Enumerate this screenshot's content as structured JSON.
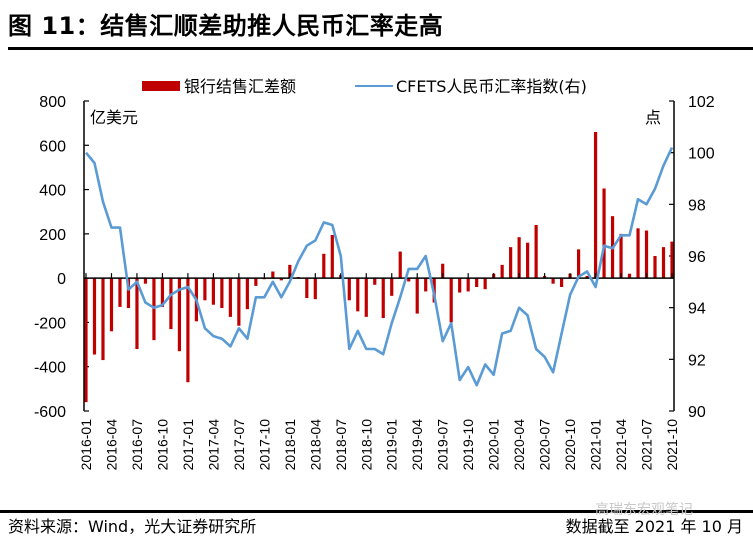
{
  "header": {
    "title": "图 11：结售汇顺差助推人民币汇率走高"
  },
  "footer": {
    "source": "资料来源：Wind，光大证券研究所",
    "cutoff": "数据截至 2021 年 10 月",
    "watermark": "高瑞东宏观笔记"
  },
  "chart_data": {
    "type": "bar+line",
    "title": "结售汇顺差助推人民币汇率走高",
    "legend": [
      {
        "name": "银行结售汇差额",
        "color": "#C00000",
        "kind": "bar"
      },
      {
        "name": "CFETS人民币汇率指数(右)",
        "color": "#5B9BD5",
        "kind": "line"
      }
    ],
    "legend_placement": "top",
    "left_axis": {
      "unit": "亿美元",
      "ylim": [
        -600,
        800
      ],
      "ticks": [
        "800",
        "600",
        "400",
        "200",
        "0",
        "-200",
        "-400",
        "-600"
      ]
    },
    "right_axis": {
      "unit": "点",
      "ylim": [
        90,
        102
      ],
      "ticks": [
        "102",
        "100",
        "98",
        "96",
        "94",
        "92",
        "90"
      ]
    },
    "x_tick_labels": [
      "2016-01",
      "2016-04",
      "2016-07",
      "2016-10",
      "2017-01",
      "2017-04",
      "2017-07",
      "2017-10",
      "2018-01",
      "2018-04",
      "2018-07",
      "2018-10",
      "2019-01",
      "2019-04",
      "2019-07",
      "2019-10",
      "2020-01",
      "2020-04",
      "2020-07",
      "2020-10",
      "2021-01",
      "2021-04",
      "2021-07",
      "2021-10"
    ],
    "start": "2016-01",
    "series": [
      {
        "name": "银行结售汇差额",
        "axis": "left",
        "values": [
          -560,
          -345,
          -370,
          -240,
          -130,
          -135,
          -320,
          -25,
          -280,
          -130,
          -230,
          -330,
          -470,
          -195,
          -100,
          -120,
          -135,
          -175,
          -215,
          -140,
          -35,
          -5,
          30,
          -10,
          60,
          5,
          -90,
          -95,
          110,
          195,
          15,
          -100,
          -150,
          -175,
          -30,
          -180,
          -80,
          120,
          -15,
          -160,
          -60,
          -110,
          65,
          -200,
          -65,
          -60,
          -40,
          -50,
          20,
          60,
          140,
          185,
          160,
          240,
          10,
          -25,
          -40,
          20,
          130,
          10,
          660,
          405,
          280,
          200,
          20,
          225,
          215,
          100,
          140,
          165
        ]
      },
      {
        "name": "CFETS人民币汇率指数(右)",
        "axis": "right",
        "values": [
          100.0,
          99.6,
          98.1,
          97.1,
          97.1,
          94.7,
          95.0,
          94.2,
          94.0,
          94.1,
          94.5,
          94.7,
          94.8,
          94.3,
          93.2,
          92.9,
          92.8,
          92.5,
          93.2,
          92.8,
          94.4,
          94.4,
          95.0,
          94.4,
          95.0,
          95.8,
          96.4,
          96.6,
          97.3,
          97.2,
          96.0,
          92.4,
          93.1,
          92.4,
          92.4,
          92.2,
          93.4,
          94.4,
          95.5,
          95.5,
          96.0,
          94.5,
          92.7,
          93.4,
          91.2,
          91.7,
          91.0,
          91.8,
          91.4,
          93.0,
          93.1,
          94.0,
          93.7,
          92.4,
          92.1,
          91.5,
          93.0,
          94.5,
          95.2,
          95.4,
          94.8,
          96.4,
          96.3,
          96.8,
          96.8,
          98.2,
          98.0,
          98.6,
          99.5,
          100.2
        ]
      }
    ]
  }
}
